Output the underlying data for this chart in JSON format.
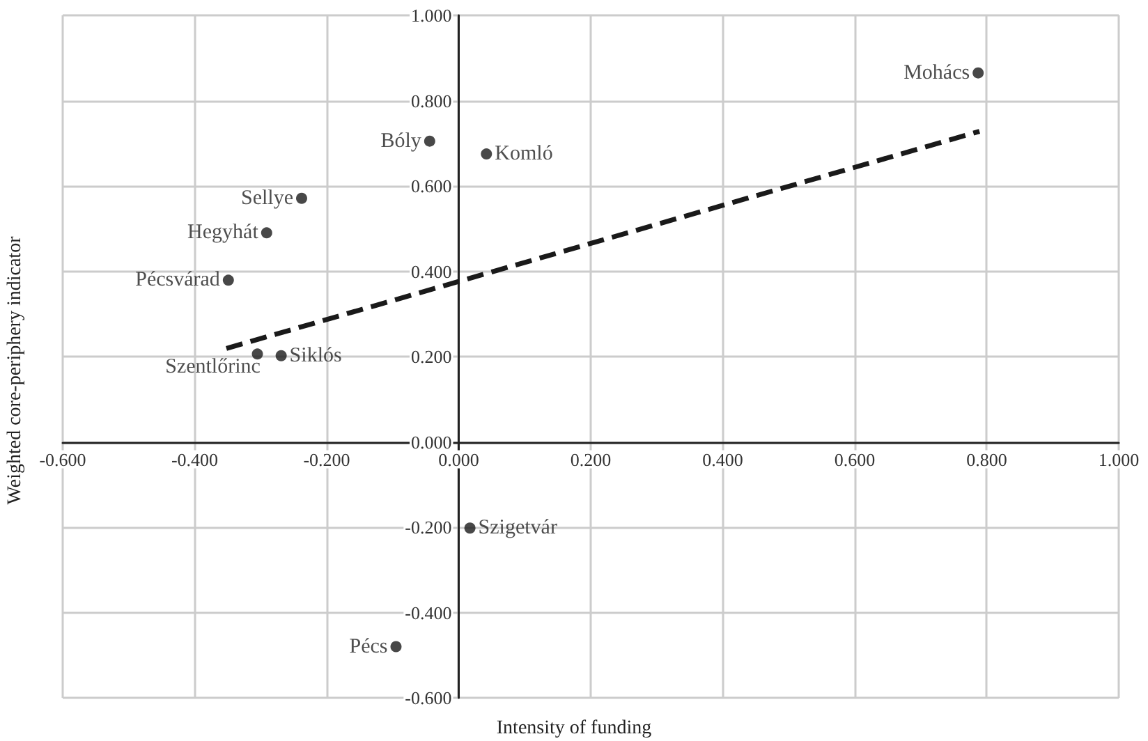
{
  "chart_data": {
    "type": "scatter",
    "xlabel": "Intensity of funding",
    "ylabel": "Weighted core-periphery indicator",
    "x": [
      0.787,
      -0.044,
      0.042,
      -0.238,
      -0.291,
      -0.349,
      -0.305,
      -0.269,
      0.017,
      -0.095
    ],
    "values": [
      0.865,
      0.705,
      0.675,
      0.571,
      0.49,
      0.379,
      0.206,
      0.202,
      -0.202,
      -0.48
    ],
    "color": "#1a1a1a",
    "marker": "circle",
    "series": [
      {
        "type": "line",
        "x": [
          -0.352,
          0.789
        ],
        "values": [
          0.219,
          0.728
        ],
        "color": "#1a1a1a",
        "line_style": "dashed",
        "marker": "none"
      }
    ],
    "annotations": [
      {
        "text": "Mohács",
        "x": 0.787,
        "y": 0.865
      },
      {
        "text": "Bóly",
        "x": -0.044,
        "y": 0.705
      },
      {
        "text": "Komló",
        "x": 0.042,
        "y": 0.675
      },
      {
        "text": "Sellye",
        "x": -0.238,
        "y": 0.571
      },
      {
        "text": "Hegyhát",
        "x": -0.291,
        "y": 0.49
      },
      {
        "text": "Pécsvárad",
        "x": -0.349,
        "y": 0.379
      },
      {
        "text": "Szentlőrinc",
        "x": -0.305,
        "y": 0.206
      },
      {
        "text": "Siklós",
        "x": -0.269,
        "y": 0.202
      },
      {
        "text": "Szigetvár",
        "x": 0.017,
        "y": -0.202
      },
      {
        "text": "Pécs",
        "x": -0.095,
        "y": -0.48
      }
    ],
    "xlim": [
      -0.6,
      1.0
    ],
    "xticks": [
      {
        "value": -0.6,
        "label": "-0.600"
      },
      {
        "value": -0.4,
        "label": "-0.400"
      },
      {
        "value": -0.2,
        "label": "-0.200"
      },
      {
        "value": 0,
        "label": "0.000"
      },
      {
        "value": 0.2,
        "label": "0.200"
      },
      {
        "value": 0.4,
        "label": "0.400"
      },
      {
        "value": 0.6,
        "label": "0.600"
      },
      {
        "value": 0.8,
        "label": "0.800"
      },
      {
        "value": 1.0,
        "label": "1.000"
      }
    ],
    "ylim": [
      -0.6,
      1.0
    ],
    "yticks": [
      {
        "value": -0.6,
        "label": "-0.600"
      },
      {
        "value": -0.4,
        "label": "-0.400"
      },
      {
        "value": -0.2,
        "label": "-0.200"
      },
      {
        "value": 0,
        "label": "0.000"
      },
      {
        "value": 0.2,
        "label": "0.200"
      },
      {
        "value": 0.4,
        "label": "0.400"
      },
      {
        "value": 0.6,
        "label": "0.600"
      },
      {
        "value": 0.8,
        "label": "0.800"
      },
      {
        "value": 1.0,
        "label": "1.000"
      }
    ],
    "grid": true
  }
}
